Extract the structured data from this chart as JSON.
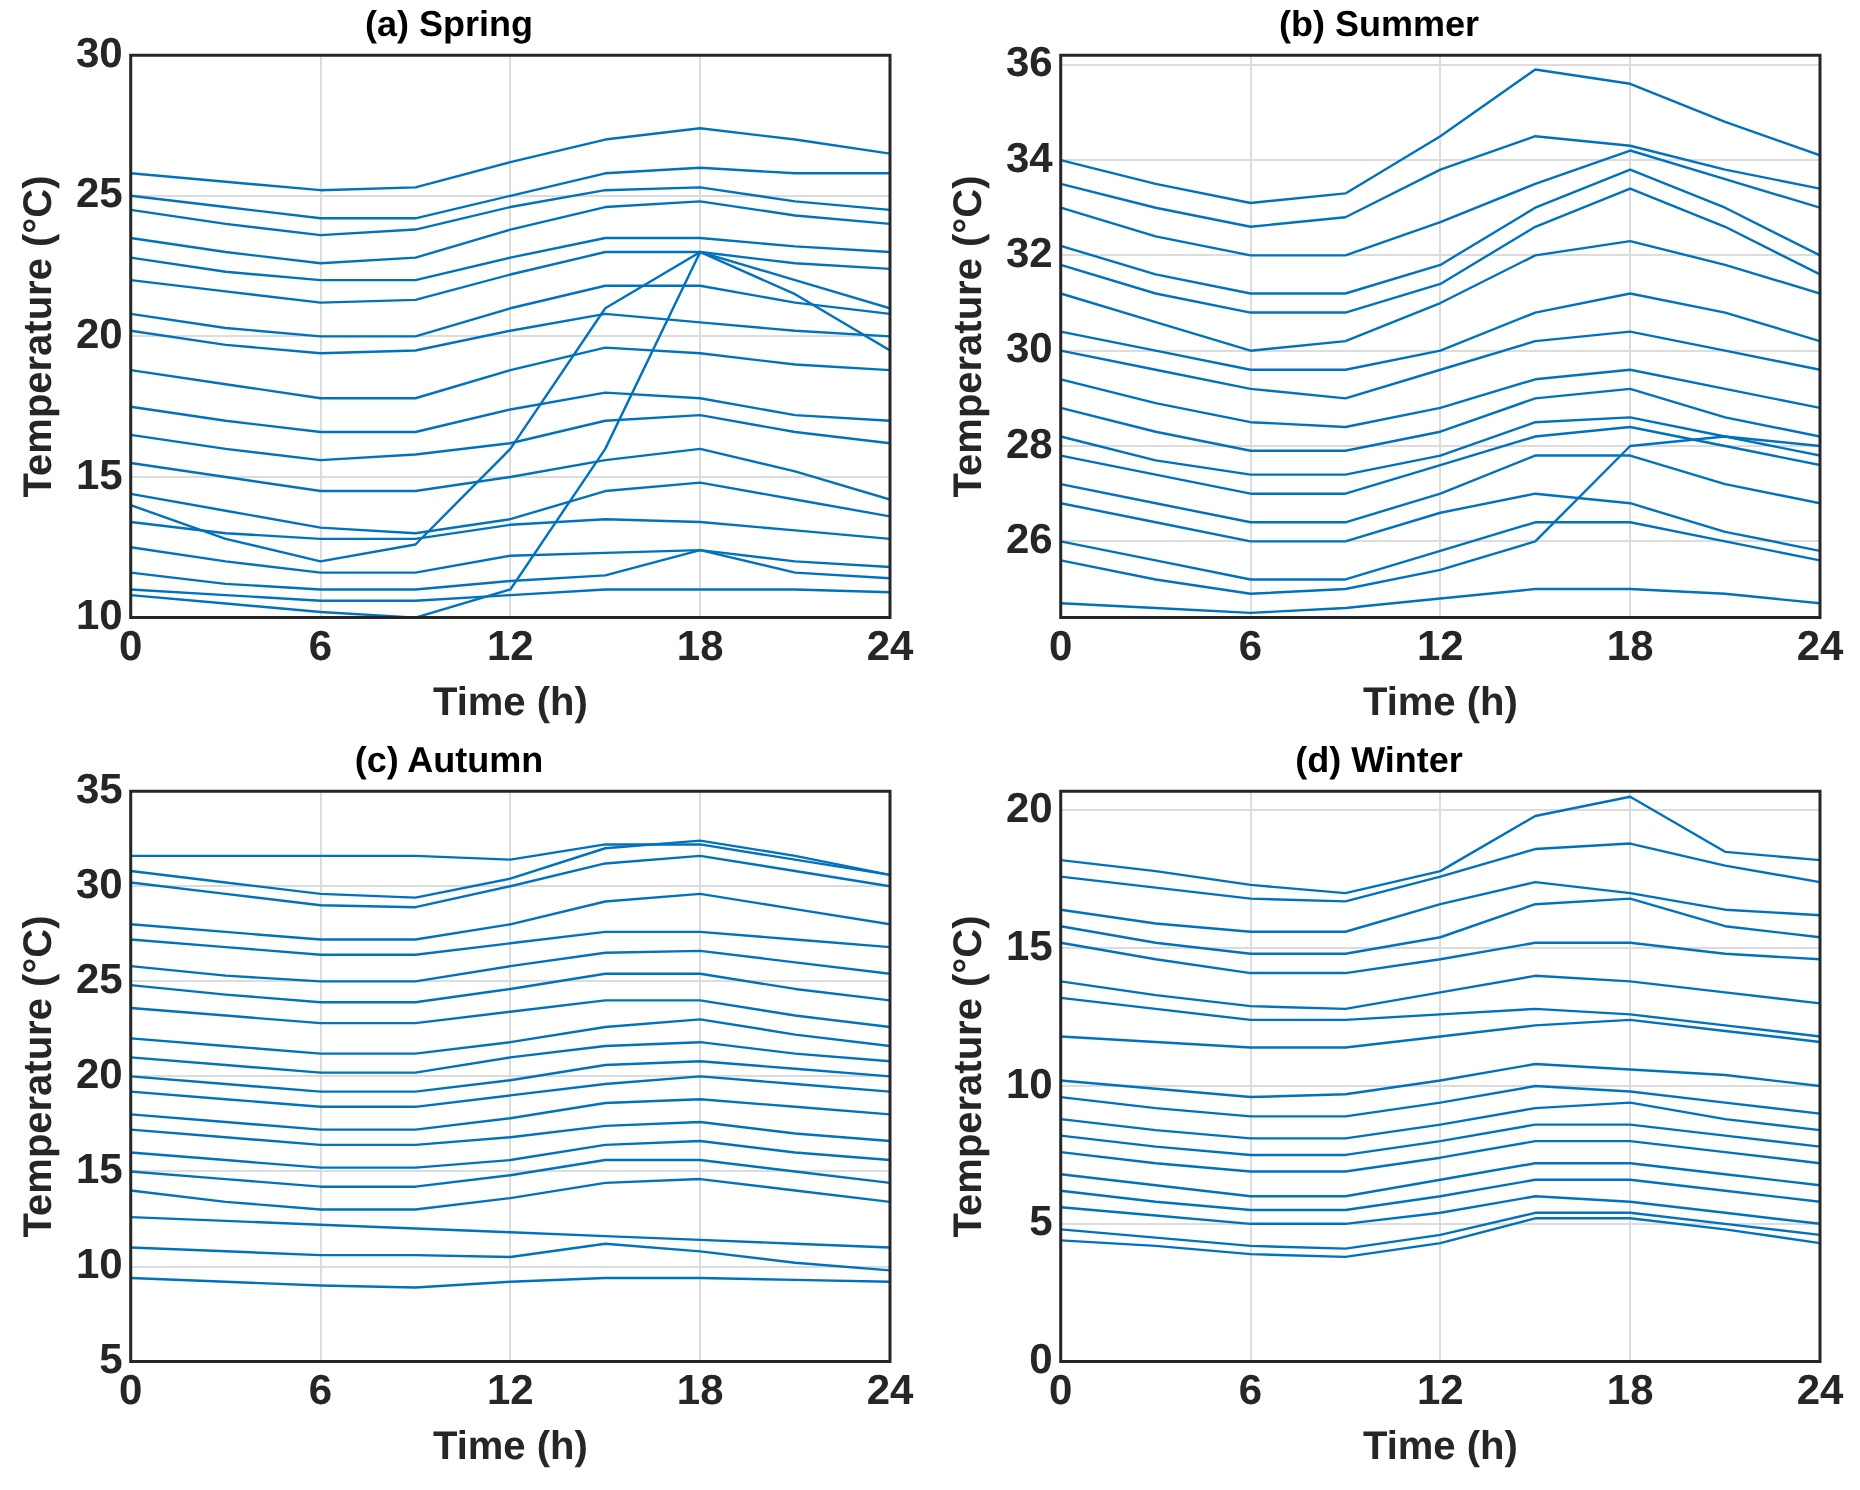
{
  "chart_data": [
    {
      "type": "line",
      "title": "(a) Spring",
      "xlabel": "Time (h)",
      "ylabel": "Temperature (°C)",
      "x": [
        0,
        3,
        6,
        9,
        12,
        15,
        18,
        21,
        24
      ],
      "xlim": [
        0,
        24
      ],
      "xticks": [
        0,
        6,
        12,
        18,
        24
      ],
      "ylim": [
        10,
        30
      ],
      "yticks": [
        10,
        15,
        20,
        25,
        30
      ],
      "grid": true,
      "legend": false,
      "marker": "none",
      "series": [
        {
          "color": "#0072bd",
          "values": [
            25.8,
            25.5,
            25.2,
            25.3,
            26.2,
            27.0,
            27.4,
            27.0,
            26.5
          ]
        },
        {
          "color": "#0072bd",
          "values": [
            25.0,
            24.6,
            24.2,
            24.2,
            25.0,
            25.8,
            26.0,
            25.8,
            25.8
          ]
        },
        {
          "color": "#0072bd",
          "values": [
            24.5,
            24.0,
            23.6,
            23.8,
            24.6,
            25.2,
            25.3,
            24.8,
            24.5
          ]
        },
        {
          "color": "#0072bd",
          "values": [
            23.5,
            23.0,
            22.6,
            22.8,
            23.8,
            24.6,
            24.8,
            24.3,
            24.0
          ]
        },
        {
          "color": "#0072bd",
          "values": [
            22.8,
            22.3,
            22.0,
            22.0,
            22.8,
            23.5,
            23.5,
            23.2,
            23.0
          ]
        },
        {
          "color": "#0072bd",
          "values": [
            22.0,
            21.6,
            21.2,
            21.3,
            22.2,
            23.0,
            23.0,
            22.6,
            22.4
          ]
        },
        {
          "color": "#0072bd",
          "values": [
            20.8,
            20.3,
            20.0,
            20.0,
            21.0,
            21.8,
            21.8,
            21.2,
            20.8
          ]
        },
        {
          "color": "#0072bd",
          "values": [
            20.2,
            19.7,
            19.4,
            19.5,
            20.2,
            20.8,
            20.5,
            20.2,
            20.0
          ]
        },
        {
          "color": "#0072bd",
          "values": [
            18.8,
            18.3,
            17.8,
            17.8,
            18.8,
            19.6,
            19.4,
            19.0,
            18.8
          ]
        },
        {
          "color": "#0072bd",
          "values": [
            17.5,
            17.0,
            16.6,
            16.6,
            17.4,
            18.0,
            17.8,
            17.2,
            17.0
          ]
        },
        {
          "color": "#0072bd",
          "values": [
            16.5,
            16.0,
            15.6,
            15.8,
            16.2,
            17.0,
            17.2,
            16.6,
            16.2
          ]
        },
        {
          "color": "#0072bd",
          "values": [
            15.5,
            15.0,
            14.5,
            14.5,
            15.0,
            15.6,
            16.0,
            15.2,
            14.2
          ]
        },
        {
          "color": "#0072bd",
          "values": [
            14.4,
            13.8,
            13.2,
            13.0,
            13.5,
            14.5,
            14.8,
            14.2,
            13.6
          ]
        },
        {
          "color": "#0072bd",
          "values": [
            13.4,
            13.0,
            12.8,
            12.8,
            13.3,
            13.5,
            13.4,
            13.1,
            12.8
          ]
        },
        {
          "color": "#0072bd",
          "values": [
            12.5,
            12.0,
            11.6,
            11.6,
            12.2,
            12.3,
            12.4,
            12.0,
            11.8
          ]
        },
        {
          "color": "#0072bd",
          "values": [
            11.6,
            11.2,
            11.0,
            11.0,
            11.3,
            11.5,
            12.4,
            11.6,
            11.4
          ]
        },
        {
          "color": "#0072bd",
          "values": [
            11.0,
            10.8,
            10.6,
            10.6,
            10.8,
            11.0,
            11.0,
            11.0,
            10.9
          ]
        },
        {
          "color": "#0072bd",
          "values": [
            10.8,
            10.5,
            10.2,
            10.0,
            11.0,
            16.0,
            23.0,
            22.0,
            21.0
          ]
        },
        {
          "color": "#0072bd",
          "values": [
            14.0,
            12.8,
            12.0,
            12.6,
            16.0,
            21.0,
            23.0,
            21.5,
            19.5
          ]
        }
      ]
    },
    {
      "type": "line",
      "title": "(b) Summer",
      "xlabel": "Time (h)",
      "ylabel": "Temperature (°C)",
      "x": [
        0,
        3,
        6,
        9,
        12,
        15,
        18,
        21,
        24
      ],
      "xlim": [
        0,
        24
      ],
      "xticks": [
        0,
        6,
        12,
        18,
        24
      ],
      "ylim": [
        24.4,
        36.2
      ],
      "yticks": [
        26,
        28,
        30,
        32,
        34,
        36
      ],
      "grid": true,
      "legend": false,
      "marker": "none",
      "series": [
        {
          "color": "#0072bd",
          "values": [
            34.0,
            33.5,
            33.1,
            33.3,
            34.5,
            35.9,
            35.6,
            34.8,
            34.1
          ]
        },
        {
          "color": "#0072bd",
          "values": [
            33.5,
            33.0,
            32.6,
            32.8,
            33.8,
            34.5,
            34.3,
            33.8,
            33.4
          ]
        },
        {
          "color": "#0072bd",
          "values": [
            33.0,
            32.4,
            32.0,
            32.0,
            32.7,
            33.5,
            34.2,
            33.6,
            33.0
          ]
        },
        {
          "color": "#0072bd",
          "values": [
            32.2,
            31.6,
            31.2,
            31.2,
            31.8,
            33.0,
            33.8,
            33.0,
            32.0
          ]
        },
        {
          "color": "#0072bd",
          "values": [
            31.8,
            31.2,
            30.8,
            30.8,
            31.4,
            32.6,
            33.4,
            32.6,
            31.6
          ]
        },
        {
          "color": "#0072bd",
          "values": [
            31.2,
            30.6,
            30.0,
            30.2,
            31.0,
            32.0,
            32.3,
            31.8,
            31.2
          ]
        },
        {
          "color": "#0072bd",
          "values": [
            30.4,
            30.0,
            29.6,
            29.6,
            30.0,
            30.8,
            31.2,
            30.8,
            30.2
          ]
        },
        {
          "color": "#0072bd",
          "values": [
            30.0,
            29.6,
            29.2,
            29.0,
            29.6,
            30.2,
            30.4,
            30.0,
            29.6
          ]
        },
        {
          "color": "#0072bd",
          "values": [
            29.4,
            28.9,
            28.5,
            28.4,
            28.8,
            29.4,
            29.6,
            29.2,
            28.8
          ]
        },
        {
          "color": "#0072bd",
          "values": [
            28.8,
            28.3,
            27.9,
            27.9,
            28.3,
            29.0,
            29.2,
            28.6,
            28.2
          ]
        },
        {
          "color": "#0072bd",
          "values": [
            28.2,
            27.7,
            27.4,
            27.4,
            27.8,
            28.5,
            28.6,
            28.2,
            27.8
          ]
        },
        {
          "color": "#0072bd",
          "values": [
            27.8,
            27.4,
            27.0,
            27.0,
            27.6,
            28.2,
            28.4,
            28.0,
            27.6
          ]
        },
        {
          "color": "#0072bd",
          "values": [
            27.2,
            26.8,
            26.4,
            26.4,
            27.0,
            27.8,
            27.8,
            27.2,
            26.8
          ]
        },
        {
          "color": "#0072bd",
          "values": [
            26.8,
            26.4,
            26.0,
            26.0,
            26.6,
            27.0,
            26.8,
            26.2,
            25.8
          ]
        },
        {
          "color": "#0072bd",
          "values": [
            26.0,
            25.6,
            25.2,
            25.2,
            25.8,
            26.4,
            26.4,
            26.0,
            25.6
          ]
        },
        {
          "color": "#0072bd",
          "values": [
            25.6,
            25.2,
            24.9,
            25.0,
            25.4,
            26.0,
            28.0,
            28.2,
            28.0
          ]
        },
        {
          "color": "#0072bd",
          "values": [
            24.7,
            24.6,
            24.5,
            24.6,
            24.8,
            25.0,
            25.0,
            24.9,
            24.7
          ]
        }
      ]
    },
    {
      "type": "line",
      "title": "(c) Autumn",
      "xlabel": "Time (h)",
      "ylabel": "Temperature (°C)",
      "x": [
        0,
        3,
        6,
        9,
        12,
        15,
        18,
        21,
        24
      ],
      "xlim": [
        0,
        24
      ],
      "xticks": [
        0,
        6,
        12,
        18,
        24
      ],
      "ylim": [
        5,
        35
      ],
      "yticks": [
        5,
        10,
        15,
        20,
        25,
        30,
        35
      ],
      "grid": true,
      "legend": false,
      "marker": "none",
      "series": [
        {
          "color": "#0072bd",
          "values": [
            31.6,
            31.6,
            31.6,
            31.6,
            31.4,
            32.2,
            32.2,
            31.4,
            30.6
          ]
        },
        {
          "color": "#0072bd",
          "values": [
            30.8,
            30.2,
            29.6,
            29.4,
            30.4,
            32.0,
            32.4,
            31.6,
            30.6
          ]
        },
        {
          "color": "#0072bd",
          "values": [
            30.2,
            29.6,
            29.0,
            28.9,
            30.0,
            31.2,
            31.6,
            30.8,
            30.0
          ]
        },
        {
          "color": "#0072bd",
          "values": [
            28.0,
            27.6,
            27.2,
            27.2,
            28.0,
            29.2,
            29.6,
            28.8,
            28.0
          ]
        },
        {
          "color": "#0072bd",
          "values": [
            27.2,
            26.8,
            26.4,
            26.4,
            27.0,
            27.6,
            27.6,
            27.2,
            26.8
          ]
        },
        {
          "color": "#0072bd",
          "values": [
            25.8,
            25.3,
            25.0,
            25.0,
            25.8,
            26.5,
            26.6,
            26.0,
            25.4
          ]
        },
        {
          "color": "#0072bd",
          "values": [
            24.8,
            24.3,
            23.9,
            23.9,
            24.6,
            25.4,
            25.4,
            24.6,
            24.0
          ]
        },
        {
          "color": "#0072bd",
          "values": [
            23.6,
            23.2,
            22.8,
            22.8,
            23.4,
            24.0,
            24.0,
            23.2,
            22.6
          ]
        },
        {
          "color": "#0072bd",
          "values": [
            22.0,
            21.6,
            21.2,
            21.2,
            21.8,
            22.6,
            23.0,
            22.2,
            21.6
          ]
        },
        {
          "color": "#0072bd",
          "values": [
            21.0,
            20.6,
            20.2,
            20.2,
            21.0,
            21.6,
            21.8,
            21.2,
            20.8
          ]
        },
        {
          "color": "#0072bd",
          "values": [
            20.0,
            19.6,
            19.2,
            19.2,
            19.8,
            20.6,
            20.8,
            20.4,
            20.0
          ]
        },
        {
          "color": "#0072bd",
          "values": [
            19.2,
            18.8,
            18.4,
            18.4,
            19.0,
            19.6,
            20.0,
            19.6,
            19.2
          ]
        },
        {
          "color": "#0072bd",
          "values": [
            18.0,
            17.6,
            17.2,
            17.2,
            17.8,
            18.6,
            18.8,
            18.4,
            18.0
          ]
        },
        {
          "color": "#0072bd",
          "values": [
            17.2,
            16.8,
            16.4,
            16.4,
            16.8,
            17.4,
            17.6,
            17.0,
            16.6
          ]
        },
        {
          "color": "#0072bd",
          "values": [
            16.0,
            15.6,
            15.2,
            15.2,
            15.6,
            16.4,
            16.6,
            16.0,
            15.6
          ]
        },
        {
          "color": "#0072bd",
          "values": [
            15.0,
            14.6,
            14.2,
            14.2,
            14.8,
            15.6,
            15.6,
            15.0,
            14.4
          ]
        },
        {
          "color": "#0072bd",
          "values": [
            14.0,
            13.4,
            13.0,
            13.0,
            13.6,
            14.4,
            14.6,
            14.0,
            13.4
          ]
        },
        {
          "color": "#0072bd",
          "values": [
            12.6,
            12.4,
            12.2,
            12.0,
            11.8,
            11.6,
            11.4,
            11.2,
            11.0
          ]
        },
        {
          "color": "#0072bd",
          "values": [
            11.0,
            10.8,
            10.6,
            10.6,
            10.5,
            11.2,
            10.8,
            10.2,
            9.8
          ]
        },
        {
          "color": "#0072bd",
          "values": [
            9.4,
            9.2,
            9.0,
            8.9,
            9.2,
            9.4,
            9.4,
            9.3,
            9.2
          ]
        }
      ]
    },
    {
      "type": "line",
      "title": "(d) Winter",
      "xlabel": "Time (h)",
      "ylabel": "Temperature (°C)",
      "x": [
        0,
        3,
        6,
        9,
        12,
        15,
        18,
        21,
        24
      ],
      "xlim": [
        0,
        24
      ],
      "xticks": [
        0,
        6,
        12,
        18,
        24
      ],
      "ylim": [
        0,
        20.7
      ],
      "yticks": [
        0,
        5,
        10,
        15,
        20
      ],
      "grid": true,
      "legend": false,
      "marker": "none",
      "series": [
        {
          "color": "#0072bd",
          "values": [
            18.2,
            17.8,
            17.3,
            17.0,
            17.8,
            19.8,
            20.5,
            18.5,
            18.2
          ]
        },
        {
          "color": "#0072bd",
          "values": [
            17.6,
            17.2,
            16.8,
            16.7,
            17.6,
            18.6,
            18.8,
            18.0,
            17.4
          ]
        },
        {
          "color": "#0072bd",
          "values": [
            16.4,
            15.9,
            15.6,
            15.6,
            16.6,
            17.4,
            17.0,
            16.4,
            16.2
          ]
        },
        {
          "color": "#0072bd",
          "values": [
            15.8,
            15.2,
            14.8,
            14.8,
            15.4,
            16.6,
            16.8,
            15.8,
            15.4
          ]
        },
        {
          "color": "#0072bd",
          "values": [
            15.2,
            14.6,
            14.1,
            14.1,
            14.6,
            15.2,
            15.2,
            14.8,
            14.6
          ]
        },
        {
          "color": "#0072bd",
          "values": [
            13.8,
            13.3,
            12.9,
            12.8,
            13.4,
            14.0,
            13.8,
            13.4,
            13.0
          ]
        },
        {
          "color": "#0072bd",
          "values": [
            13.2,
            12.8,
            12.4,
            12.4,
            12.6,
            12.8,
            12.6,
            12.2,
            11.8
          ]
        },
        {
          "color": "#0072bd",
          "values": [
            11.8,
            11.6,
            11.4,
            11.4,
            11.8,
            12.2,
            12.4,
            12.0,
            11.6
          ]
        },
        {
          "color": "#0072bd",
          "values": [
            10.2,
            9.9,
            9.6,
            9.7,
            10.2,
            10.8,
            10.6,
            10.4,
            10.0
          ]
        },
        {
          "color": "#0072bd",
          "values": [
            9.6,
            9.2,
            8.9,
            8.9,
            9.4,
            10.0,
            9.8,
            9.4,
            9.0
          ]
        },
        {
          "color": "#0072bd",
          "values": [
            8.8,
            8.4,
            8.1,
            8.1,
            8.6,
            9.2,
            9.4,
            8.8,
            8.4
          ]
        },
        {
          "color": "#0072bd",
          "values": [
            8.2,
            7.8,
            7.5,
            7.5,
            8.0,
            8.6,
            8.6,
            8.2,
            7.8
          ]
        },
        {
          "color": "#0072bd",
          "values": [
            7.6,
            7.2,
            6.9,
            6.9,
            7.4,
            8.0,
            8.0,
            7.6,
            7.2
          ]
        },
        {
          "color": "#0072bd",
          "values": [
            6.8,
            6.4,
            6.0,
            6.0,
            6.6,
            7.2,
            7.2,
            6.8,
            6.4
          ]
        },
        {
          "color": "#0072bd",
          "values": [
            6.2,
            5.8,
            5.5,
            5.5,
            6.0,
            6.6,
            6.6,
            6.2,
            5.8
          ]
        },
        {
          "color": "#0072bd",
          "values": [
            5.6,
            5.3,
            5.0,
            5.0,
            5.4,
            6.0,
            5.8,
            5.4,
            5.0
          ]
        },
        {
          "color": "#0072bd",
          "values": [
            4.8,
            4.5,
            4.2,
            4.1,
            4.6,
            5.4,
            5.4,
            5.0,
            4.6
          ]
        },
        {
          "color": "#0072bd",
          "values": [
            4.4,
            4.2,
            3.9,
            3.8,
            4.3,
            5.2,
            5.2,
            4.8,
            4.3
          ]
        }
      ]
    }
  ]
}
